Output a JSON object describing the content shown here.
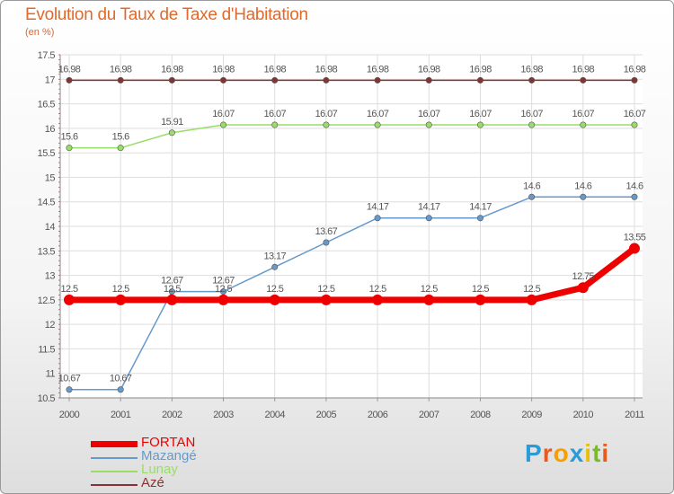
{
  "chart_data": {
    "type": "line",
    "title": "Evolution du Taux de Taxe d'Habitation",
    "subtitle": "(en %)",
    "x": [
      "2000",
      "2001",
      "2002",
      "2003",
      "2004",
      "2005",
      "2006",
      "2007",
      "2008",
      "2009",
      "2010",
      "2011"
    ],
    "yticks": [
      "17.5",
      "17",
      "16.5",
      "16",
      "15.5",
      "15",
      "14.5",
      "14",
      "13.5",
      "13",
      "12.5",
      "12",
      "11.5",
      "11",
      "10.5"
    ],
    "ylim": [
      10.5,
      17.5
    ],
    "series": [
      {
        "name": "FORTAN",
        "color": "#ee0000",
        "values": [
          12.5,
          12.5,
          12.5,
          12.5,
          12.5,
          12.5,
          12.5,
          12.5,
          12.5,
          12.5,
          12.75,
          13.55
        ],
        "labels": [
          "12.5",
          "12.5",
          "12.5",
          "12.5",
          "12.5",
          "12.5",
          "12.5",
          "12.5",
          "12.5",
          "12.5",
          "12.75",
          "13.55"
        ]
      },
      {
        "name": "Mazangé",
        "color": "#6699cc",
        "values": [
          10.67,
          10.67,
          12.67,
          12.67,
          13.17,
          13.67,
          14.17,
          14.17,
          14.17,
          14.6,
          14.6,
          14.6
        ],
        "labels": [
          "10.67",
          "10.67",
          "12.67",
          "12.67",
          "13.17",
          "13.67",
          "14.17",
          "14.17",
          "14.17",
          "14.6",
          "14.6",
          "14.6"
        ]
      },
      {
        "name": "Lunay",
        "color": "#99dd66",
        "values": [
          15.6,
          15.6,
          15.91,
          16.07,
          16.07,
          16.07,
          16.07,
          16.07,
          16.07,
          16.07,
          16.07,
          16.07
        ],
        "labels": [
          "15.6",
          "15.6",
          "15.91",
          "16.07",
          "16.07",
          "16.07",
          "16.07",
          "16.07",
          "16.07",
          "16.07",
          "16.07",
          "16.07"
        ]
      },
      {
        "name": "Azé",
        "color": "#883333",
        "values": [
          16.98,
          16.98,
          16.98,
          16.98,
          16.98,
          16.98,
          16.98,
          16.98,
          16.98,
          16.98,
          16.98,
          16.98
        ],
        "labels": [
          "16.98",
          "16.98",
          "16.98",
          "16.98",
          "16.98",
          "16.98",
          "16.98",
          "16.98",
          "16.98",
          "16.98",
          "16.98",
          "16.98"
        ]
      }
    ],
    "grid": true,
    "legend": "bottom-left"
  },
  "logo": {
    "letters": [
      "P",
      "r",
      "o",
      "x",
      "i",
      "t",
      "i"
    ],
    "colors": [
      "#2a9bd6",
      "#e85a1b",
      "#f5a000",
      "#2a9bd6",
      "#e8c000",
      "#7ab82e",
      "#e85a1b"
    ]
  }
}
